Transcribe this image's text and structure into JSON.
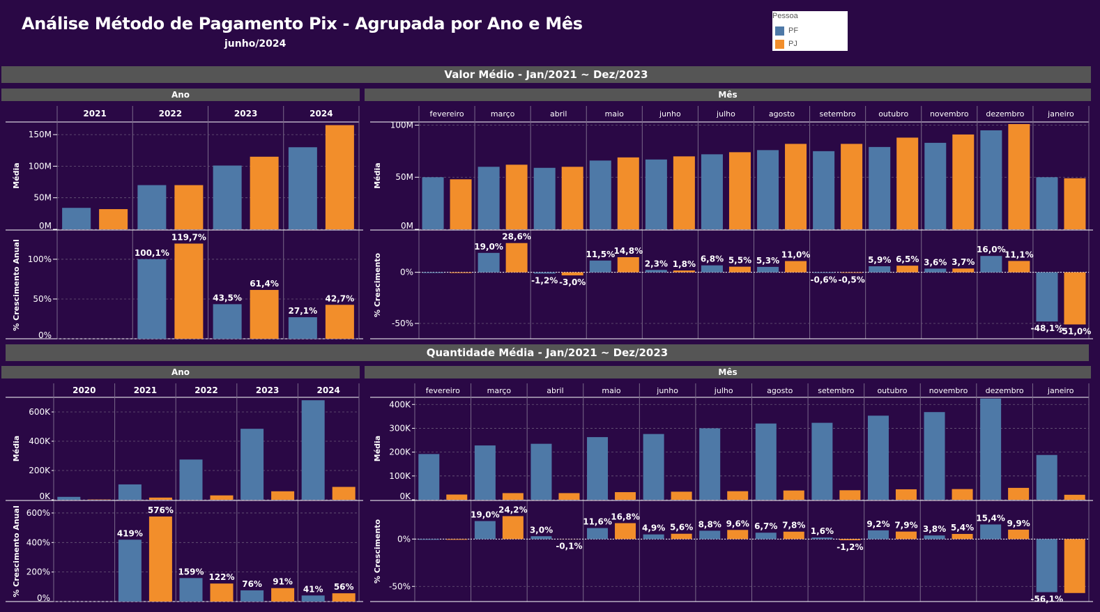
{
  "header": {
    "title": "Análise Método de Pagamento Pix - Agrupada por Ano e Mês",
    "subtitle": "junho/2024"
  },
  "legend": {
    "title": "Pessoa",
    "items": [
      {
        "label": "PF",
        "color": "#4e79a7"
      },
      {
        "label": "PJ",
        "color": "#f28e2b"
      }
    ]
  },
  "sections": {
    "valor": "Valor Médio - Jan/2021 ~ Dez/2023",
    "quantidade": "Quantidade Média - Jan/2021 ~ Dez/2023",
    "ano": "Ano",
    "mes": "Mês"
  },
  "chart_data": [
    {
      "id": "valor_ano",
      "type": "bar",
      "categories": [
        "2021",
        "2022",
        "2023",
        "2024"
      ],
      "top": {
        "ylabel": "Média",
        "ylim": [
          0,
          170000000
        ],
        "ticks": [
          0,
          50000000,
          100000000,
          150000000
        ],
        "tick_labels": [
          "0M",
          "50M",
          "100M",
          "150M"
        ],
        "series": [
          {
            "name": "PF",
            "values": [
              34000000,
              70000000,
              101000000,
              130000000
            ]
          },
          {
            "name": "PJ",
            "values": [
              32000000,
              70000000,
              115000000,
              165000000
            ]
          }
        ]
      },
      "bottom": {
        "ylabel": "% Crescimento Anual",
        "ylim": [
          0,
          135
        ],
        "ticks": [
          0,
          50,
          100
        ],
        "tick_labels": [
          "0%",
          "50%",
          "100%"
        ],
        "series": [
          {
            "name": "PF",
            "values": [
              null,
              100.1,
              43.5,
              27.1
            ],
            "labels": [
              "",
              "100,1%",
              "43,5%",
              "27,1%"
            ]
          },
          {
            "name": "PJ",
            "values": [
              null,
              119.7,
              61.4,
              42.7
            ],
            "labels": [
              "",
              "119,7%",
              "61,4%",
              "42,7%"
            ]
          }
        ]
      }
    },
    {
      "id": "valor_mes",
      "type": "bar",
      "categories": [
        "fevereiro",
        "março",
        "abril",
        "maio",
        "junho",
        "julho",
        "agosto",
        "setembro",
        "outubro",
        "novembro",
        "dezembro",
        "janeiro"
      ],
      "top": {
        "ylabel": "Média",
        "ylim": [
          0,
          103000000
        ],
        "ticks": [
          0,
          50000000,
          100000000
        ],
        "tick_labels": [
          "0M",
          "50M",
          "100M"
        ],
        "series": [
          {
            "name": "PF",
            "values": [
              50000000,
              60000000,
              59000000,
              66000000,
              67000000,
              72000000,
              76000000,
              75000000,
              79000000,
              83000000,
              95000000,
              50000000
            ]
          },
          {
            "name": "PJ",
            "values": [
              48000000,
              62000000,
              60000000,
              69000000,
              70000000,
              74000000,
              82000000,
              82000000,
              88000000,
              91000000,
              101000000,
              49000000
            ]
          }
        ]
      },
      "bottom": {
        "ylabel": "% Crescimento",
        "ylim": [
          -65,
          40
        ],
        "ticks": [
          -50,
          0
        ],
        "tick_labels": [
          "-50%",
          "0%"
        ],
        "series": [
          {
            "name": "PF",
            "values": [
              0,
              19.0,
              -1.2,
              11.5,
              2.3,
              6.8,
              5.3,
              -0.6,
              5.9,
              3.6,
              16.0,
              -48.1
            ],
            "labels": [
              "",
              "19,0%",
              "-1,2%",
              "11,5%",
              "2,3%",
              "6,8%",
              "5,3%",
              "-0,6%",
              "5,9%",
              "3,6%",
              "16,0%",
              "-48,1%"
            ]
          },
          {
            "name": "PJ",
            "values": [
              0,
              28.6,
              -3.0,
              14.8,
              1.8,
              5.5,
              11.0,
              -0.5,
              6.5,
              3.7,
              11.1,
              -51.0
            ],
            "labels": [
              "",
              "28,6%",
              "-3,0%",
              "14,8%",
              "1,8%",
              "5,5%",
              "11,0%",
              "-0,5%",
              "6,5%",
              "3,7%",
              "11,1%",
              "-51,0%"
            ]
          }
        ]
      }
    },
    {
      "id": "quantidade_ano",
      "type": "bar",
      "categories": [
        "2020",
        "2021",
        "2022",
        "2023",
        "2024"
      ],
      "top": {
        "ylabel": "Média",
        "ylim": [
          0,
          700000
        ],
        "ticks": [
          0,
          200000,
          400000,
          600000
        ],
        "tick_labels": [
          "0K",
          "200K",
          "400K",
          "600K"
        ],
        "series": [
          {
            "name": "PF",
            "values": [
              20000,
              105000,
              275000,
              485000,
              680000
            ]
          },
          {
            "name": "PJ",
            "values": [
              2000,
              15000,
              30000,
              58000,
              88000
            ]
          }
        ]
      },
      "bottom": {
        "ylabel": "% Crescimento Anual",
        "ylim": [
          0,
          680
        ],
        "ticks": [
          0,
          200,
          400,
          600
        ],
        "tick_labels": [
          "0%",
          "200%",
          "400%",
          "600%"
        ],
        "series": [
          {
            "name": "PF",
            "values": [
              null,
              419,
              159,
              76,
              41
            ],
            "labels": [
              "",
              "419%",
              "159%",
              "76%",
              "41%"
            ]
          },
          {
            "name": "PJ",
            "values": [
              null,
              576,
              122,
              91,
              56
            ],
            "labels": [
              "",
              "576%",
              "122%",
              "91%",
              "56%"
            ]
          }
        ]
      }
    },
    {
      "id": "quantidade_mes",
      "type": "bar",
      "categories": [
        "fevereiro",
        "março",
        "abril",
        "maio",
        "junho",
        "julho",
        "agosto",
        "setembro",
        "outubro",
        "novembro",
        "dezembro",
        "janeiro"
      ],
      "top": {
        "ylabel": "Média",
        "ylim": [
          0,
          430000
        ],
        "ticks": [
          0,
          100000,
          200000,
          300000,
          400000
        ],
        "tick_labels": [
          "0K",
          "100K",
          "200K",
          "300K",
          "400K"
        ],
        "series": [
          {
            "name": "PF",
            "values": [
              192000,
              228000,
              235000,
              263000,
              276000,
              300000,
              320000,
              323000,
              353000,
              368000,
              425000,
              188000
            ]
          },
          {
            "name": "PJ",
            "values": [
              22000,
              28000,
              28000,
              32000,
              34000,
              36000,
              39000,
              40000,
              44000,
              45000,
              50000,
              21000
            ]
          }
        ]
      },
      "bottom": {
        "ylabel": "% Crescimento",
        "ylim": [
          -66,
          40
        ],
        "ticks": [
          -50,
          0
        ],
        "tick_labels": [
          "-50%",
          "0%"
        ],
        "series": [
          {
            "name": "PF",
            "values": [
              0,
              19.0,
              3.0,
              11.6,
              4.9,
              8.8,
              6.7,
              1.6,
              9.2,
              3.8,
              15.4,
              -56.1
            ],
            "labels": [
              "",
              "19,0%",
              "3,0%",
              "11,6%",
              "4,9%",
              "8,8%",
              "6,7%",
              "1,6%",
              "9,2%",
              "3,8%",
              "15,4%",
              "-56,1%"
            ]
          },
          {
            "name": "PJ",
            "values": [
              0,
              24.2,
              -0.1,
              16.8,
              5.6,
              9.6,
              7.8,
              -1.2,
              7.9,
              5.4,
              9.9,
              -57.0
            ],
            "labels": [
              "",
              "24,2%",
              "-0,1%",
              "16,8%",
              "5,6%",
              "9,6%",
              "7,8%",
              "-1,2%",
              "7,9%",
              "5,4%",
              "9,9%",
              ""
            ]
          }
        ]
      }
    }
  ]
}
